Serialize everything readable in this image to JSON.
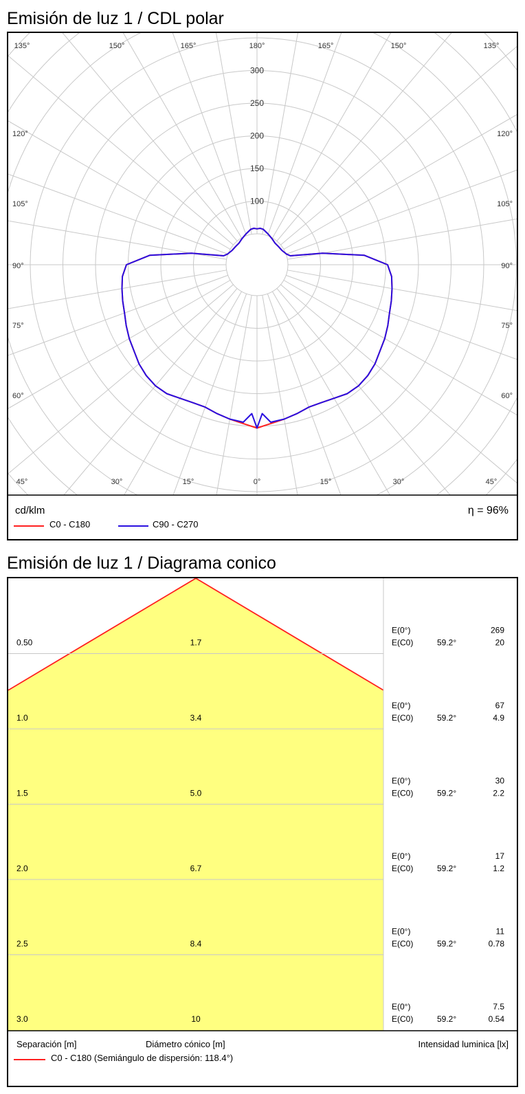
{
  "polar_title": "Emisión de luz 1 / CDL polar",
  "cone_title": "Emisión de luz 1 / Diagrama conico",
  "polar_footer": {
    "unit": "cd/klm",
    "efficiency": "η = 96%",
    "legend": [
      {
        "label": "C0 - C180",
        "color": "#ff2020"
      },
      {
        "label": "C90 - C270",
        "color": "#2a10e0"
      }
    ]
  },
  "cone_footer": {
    "col1": "Separación [m]",
    "col2": "Diámetro cónico [m]",
    "col3": "Intensidad luminica [lx]",
    "legend": "C0 - C180 (Semiángulo de dispersión: 118.4°)",
    "legend_color": "#ff2020"
  },
  "chart_data": [
    {
      "type": "polar",
      "title": "Emisión de luz 1 / CDL polar",
      "unit": "cd/klm",
      "radial_ticks": [
        100,
        150,
        200,
        250,
        300
      ],
      "rlim": [
        0,
        300
      ],
      "radial_label_prefix": [
        {
          "value": 100,
          "label": "100"
        },
        {
          "value": 150,
          "label": "150"
        },
        {
          "value": 200,
          "label": "200"
        },
        {
          "value": 250,
          "label": "250"
        },
        {
          "value": 300,
          "label": "300"
        }
      ],
      "angle_labels": {
        "top": [
          "135°",
          "150°",
          "165°",
          "180°",
          "165°",
          "150°",
          "135°"
        ],
        "sides": [
          "120°",
          "105°",
          "90°",
          "75°",
          "60°"
        ],
        "bottom": [
          "45°",
          "30°",
          "15°",
          "0°",
          "15°",
          "30°",
          "45°"
        ]
      },
      "series": [
        {
          "name": "C0 - C180",
          "color": "#ff2020",
          "points": [
            [
              0,
              250
            ],
            [
              5,
              244
            ],
            [
              10,
              240
            ],
            [
              15,
              236
            ],
            [
              20,
              232
            ],
            [
              25,
              233
            ],
            [
              30,
              236
            ],
            [
              35,
              241
            ],
            [
              40,
              242
            ],
            [
              45,
              240
            ],
            [
              50,
              236
            ],
            [
              55,
              230
            ],
            [
              60,
              226
            ],
            [
              65,
              221
            ],
            [
              70,
              216
            ],
            [
              75,
              213
            ],
            [
              80,
              210
            ],
            [
              85,
              207
            ],
            [
              90,
              200
            ],
            [
              95,
              165
            ],
            [
              100,
              102
            ],
            [
              105,
              53
            ],
            [
              110,
              48
            ],
            [
              120,
              44
            ],
            [
              130,
              43
            ],
            [
              140,
              43
            ],
            [
              150,
              46
            ],
            [
              160,
              50
            ],
            [
              170,
              55
            ],
            [
              175,
              56
            ],
            [
              180,
              55
            ]
          ]
        },
        {
          "name": "C90 - C270",
          "color": "#2a10e0",
          "points": [
            [
              0,
              250
            ],
            [
              2,
              228
            ],
            [
              5,
              242
            ],
            [
              10,
              240
            ],
            [
              15,
              236
            ],
            [
              20,
              232
            ],
            [
              25,
              233
            ],
            [
              30,
              236
            ],
            [
              35,
              241
            ],
            [
              40,
              242
            ],
            [
              45,
              240
            ],
            [
              50,
              236
            ],
            [
              55,
              230
            ],
            [
              60,
              226
            ],
            [
              65,
              221
            ],
            [
              70,
              216
            ],
            [
              75,
              213
            ],
            [
              80,
              210
            ],
            [
              85,
              207
            ],
            [
              90,
              200
            ],
            [
              95,
              165
            ],
            [
              100,
              102
            ],
            [
              105,
              53
            ],
            [
              110,
              48
            ],
            [
              120,
              44
            ],
            [
              130,
              43
            ],
            [
              140,
              43
            ],
            [
              150,
              46
            ],
            [
              160,
              50
            ],
            [
              170,
              55
            ],
            [
              175,
              56
            ],
            [
              180,
              55
            ]
          ]
        }
      ]
    },
    {
      "type": "table",
      "title": "Emisión de luz 1 / Diagrama conico",
      "half_angle": "118.4°",
      "rows": [
        {
          "separation": "0.50",
          "diameter": "1.7",
          "e0_label": "E(0°)",
          "e0": "269",
          "ec0_label": "E(C0)",
          "angle": "59.2°",
          "ec0": "20"
        },
        {
          "separation": "1.0",
          "diameter": "3.4",
          "e0_label": "E(0°)",
          "e0": "67",
          "ec0_label": "E(C0)",
          "angle": "59.2°",
          "ec0": "4.9"
        },
        {
          "separation": "1.5",
          "diameter": "5.0",
          "e0_label": "E(0°)",
          "e0": "30",
          "ec0_label": "E(C0)",
          "angle": "59.2°",
          "ec0": "2.2"
        },
        {
          "separation": "2.0",
          "diameter": "6.7",
          "e0_label": "E(0°)",
          "e0": "17",
          "ec0_label": "E(C0)",
          "angle": "59.2°",
          "ec0": "1.2"
        },
        {
          "separation": "2.5",
          "diameter": "8.4",
          "e0_label": "E(0°)",
          "e0": "11",
          "ec0_label": "E(C0)",
          "angle": "59.2°",
          "ec0": "0.78"
        },
        {
          "separation": "3.0",
          "diameter": "10",
          "e0_label": "E(0°)",
          "e0": "7.5",
          "ec0_label": "E(C0)",
          "angle": "59.2°",
          "ec0": "0.54"
        }
      ],
      "fill_color": "#ffff80",
      "edge_color": "#ff2020"
    }
  ]
}
